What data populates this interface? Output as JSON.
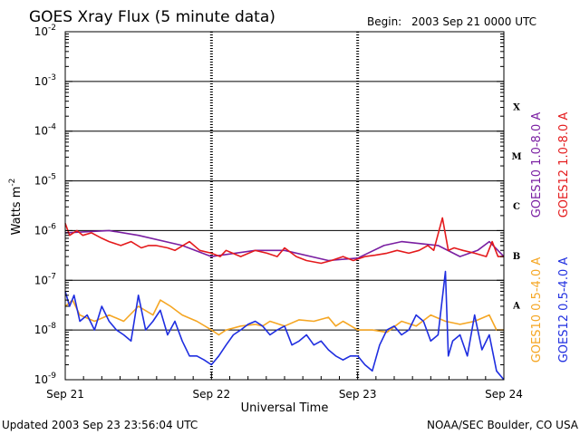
{
  "header": {
    "title": "GOES Xray Flux (5 minute data)",
    "begin_label": "Begin:",
    "begin_value": "2003 Sep 21 0000 UTC"
  },
  "footer": {
    "updated": "Updated 2003 Sep 23 23:56:04 UTC",
    "credit": "NOAA/SEC Boulder, CO USA"
  },
  "chart_data": {
    "type": "line",
    "title": "GOES Xray Flux (5 minute data)",
    "xlabel": "Universal Time",
    "ylabel": "Watts m",
    "ylabel_superscript": "-2",
    "y_scale": "log",
    "ylim": [
      1e-09,
      0.01
    ],
    "xlim": [
      "2003-09-21 00:00",
      "2003-09-24 00:00"
    ],
    "y_ticks": [
      {
        "base": "10",
        "exp": "-2",
        "value": 0.01
      },
      {
        "base": "10",
        "exp": "-3",
        "value": 0.001
      },
      {
        "base": "10",
        "exp": "-4",
        "value": 0.0001
      },
      {
        "base": "10",
        "exp": "-5",
        "value": 1e-05
      },
      {
        "base": "10",
        "exp": "-6",
        "value": 1e-06
      },
      {
        "base": "10",
        "exp": "-7",
        "value": 1e-07
      },
      {
        "base": "10",
        "exp": "-8",
        "value": 1e-08
      },
      {
        "base": "10",
        "exp": "-9",
        "value": 1e-09
      }
    ],
    "x_ticks": [
      {
        "label": "Sep 21",
        "day": 0
      },
      {
        "label": "Sep 22",
        "day": 1
      },
      {
        "label": "Sep 23",
        "day": 2
      },
      {
        "label": "Sep 24",
        "day": 3
      }
    ],
    "grid": "horizontal lines at each decade; dashed vertical lines at day boundaries",
    "flare_classes": [
      {
        "label": "X",
        "value": 0.0001
      },
      {
        "label": "M",
        "value": 1e-05
      },
      {
        "label": "C",
        "value": 1e-06
      },
      {
        "label": "B",
        "value": 1e-07
      },
      {
        "label": "A",
        "value": 1e-08
      }
    ],
    "legend_position": "right, vertical",
    "series": [
      {
        "name": "GOES10 1.0-8.0 A",
        "color": "#7a1fa2",
        "day": [
          0.0,
          0.3,
          0.5,
          0.8,
          1.0,
          1.3,
          1.5,
          1.8,
          2.0,
          2.18,
          2.3,
          2.55,
          2.7,
          2.82,
          2.9,
          3.0
        ],
        "flux": [
          9e-07,
          1e-06,
          8e-07,
          5e-07,
          3e-07,
          4e-07,
          4e-07,
          2.5e-07,
          2.8e-07,
          5e-07,
          6e-07,
          5e-07,
          3e-07,
          4e-07,
          6e-07,
          3e-07
        ]
      },
      {
        "name": "GOES12 1.0-8.0 A",
        "color": "#e41a1c",
        "day": [
          0.0,
          0.03,
          0.08,
          0.12,
          0.18,
          0.25,
          0.3,
          0.38,
          0.45,
          0.52,
          0.57,
          0.62,
          0.7,
          0.75,
          0.85,
          0.92,
          1.0,
          1.06,
          1.1,
          1.2,
          1.3,
          1.38,
          1.45,
          1.5,
          1.58,
          1.65,
          1.75,
          1.82,
          1.9,
          1.97,
          2.05,
          2.12,
          2.2,
          2.27,
          2.35,
          2.42,
          2.48,
          2.52,
          2.58,
          2.62,
          2.66,
          2.72,
          2.8,
          2.88,
          2.92,
          2.96,
          3.0
        ],
        "flux": [
          1.4e-06,
          8e-07,
          1e-06,
          8e-07,
          9e-07,
          7e-07,
          6e-07,
          5e-07,
          6e-07,
          4.5e-07,
          5e-07,
          5e-07,
          4.5e-07,
          4e-07,
          6e-07,
          4e-07,
          3.5e-07,
          3e-07,
          4e-07,
          3e-07,
          4e-07,
          3.5e-07,
          3e-07,
          4.5e-07,
          3e-07,
          2.5e-07,
          2.2e-07,
          2.5e-07,
          3e-07,
          2.5e-07,
          3e-07,
          3.2e-07,
          3.5e-07,
          4e-07,
          3.5e-07,
          4e-07,
          5e-07,
          4e-07,
          1.8e-06,
          4e-07,
          4.5e-07,
          4e-07,
          3.5e-07,
          3e-07,
          6e-07,
          3e-07,
          3e-07
        ]
      },
      {
        "name": "GOES10 0.5-4.0 A",
        "color": "#f5a623",
        "day": [
          0.0,
          0.05,
          0.1,
          0.2,
          0.3,
          0.4,
          0.5,
          0.6,
          0.65,
          0.72,
          0.8,
          0.9,
          1.0,
          1.05,
          1.1,
          1.2,
          1.3,
          1.35,
          1.4,
          1.5,
          1.6,
          1.7,
          1.8,
          1.85,
          1.9,
          2.0,
          2.1,
          2.2,
          2.3,
          2.4,
          2.5,
          2.6,
          2.7,
          2.8,
          2.9,
          2.95,
          3.0
        ],
        "flux": [
          3e-08,
          4e-08,
          2e-08,
          1.5e-08,
          2e-08,
          1.5e-08,
          3e-08,
          2e-08,
          4e-08,
          3e-08,
          2e-08,
          1.5e-08,
          1e-08,
          8e-09,
          1e-08,
          1.2e-08,
          1.3e-08,
          1.2e-08,
          1.5e-08,
          1.2e-08,
          1.6e-08,
          1.5e-08,
          1.8e-08,
          1.2e-08,
          1.5e-08,
          1e-08,
          1e-08,
          9e-09,
          1.5e-08,
          1.2e-08,
          2e-08,
          1.5e-08,
          1.3e-08,
          1.5e-08,
          2e-08,
          1e-08,
          1e-08
        ]
      },
      {
        "name": "GOES12 0.5-4.0 A",
        "color": "#1f2ee0",
        "day": [
          0.0,
          0.03,
          0.06,
          0.1,
          0.15,
          0.2,
          0.25,
          0.3,
          0.35,
          0.4,
          0.45,
          0.5,
          0.55,
          0.6,
          0.65,
          0.7,
          0.75,
          0.8,
          0.85,
          0.9,
          0.95,
          1.0,
          1.05,
          1.1,
          1.15,
          1.2,
          1.25,
          1.3,
          1.35,
          1.4,
          1.45,
          1.5,
          1.55,
          1.6,
          1.65,
          1.7,
          1.75,
          1.8,
          1.85,
          1.9,
          1.95,
          2.0,
          2.05,
          2.1,
          2.15,
          2.2,
          2.25,
          2.3,
          2.35,
          2.4,
          2.45,
          2.5,
          2.55,
          2.6,
          2.62,
          2.65,
          2.7,
          2.75,
          2.8,
          2.85,
          2.9,
          2.95,
          3.0
        ],
        "flux": [
          6e-08,
          3e-08,
          5e-08,
          1.5e-08,
          2e-08,
          1e-08,
          3e-08,
          1.5e-08,
          1e-08,
          8e-09,
          6e-09,
          5e-08,
          1e-08,
          1.5e-08,
          2.5e-08,
          8e-09,
          1.5e-08,
          6e-09,
          3e-09,
          3e-09,
          2.5e-09,
          2e-09,
          3e-09,
          5e-09,
          8e-09,
          1e-08,
          1.3e-08,
          1.5e-08,
          1.2e-08,
          8e-09,
          1e-08,
          1.2e-08,
          5e-09,
          6e-09,
          8e-09,
          5e-09,
          6e-09,
          4e-09,
          3e-09,
          2.5e-09,
          3e-09,
          3e-09,
          2e-09,
          1.5e-09,
          5e-09,
          1e-08,
          1.2e-08,
          8e-09,
          1e-08,
          2e-08,
          1.5e-08,
          6e-09,
          8e-09,
          1.5e-07,
          3e-09,
          6e-09,
          8e-09,
          3e-09,
          2e-08,
          4e-09,
          8e-09,
          1.5e-09,
          1e-09
        ]
      }
    ]
  }
}
